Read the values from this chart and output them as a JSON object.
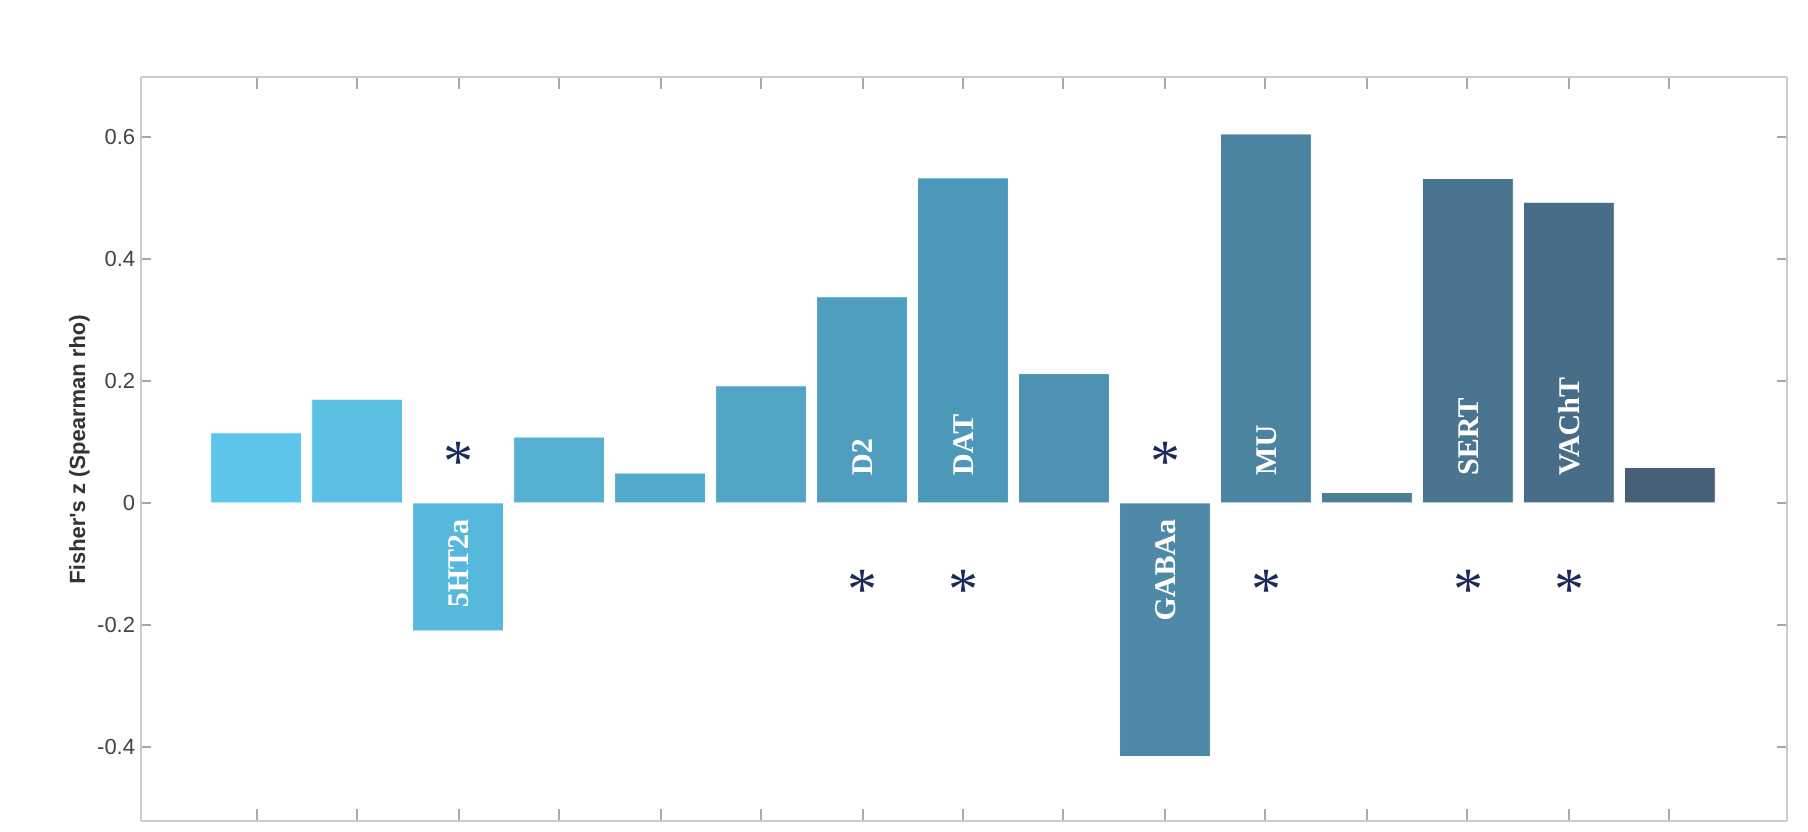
{
  "chart_data": {
    "type": "bar",
    "ylabel": "Fisher's z (Spearman rho)",
    "categories": [
      null,
      null,
      "5HT2a",
      null,
      null,
      null,
      "D2",
      "DAT",
      null,
      "GABAa",
      "MU",
      null,
      "SERT",
      "VAChT",
      null
    ],
    "values": [
      0.115,
      0.17,
      -0.21,
      0.108,
      0.049,
      0.192,
      0.338,
      0.533,
      0.212,
      -0.416,
      0.605,
      0.017,
      0.532,
      0.493,
      0.058
    ],
    "colors": [
      "#5bc5ea",
      "#5ac0e4",
      "#57b8de",
      "#55b0d2",
      "#52aaca",
      "#52a5c5",
      "#4f9dbf",
      "#4c98b9",
      "#4d92b0",
      "#4e8aa8",
      "#4b84a0",
      "#4a7e99",
      "#497591",
      "#486d89",
      "#475f79"
    ],
    "ylim": [
      -0.52,
      0.7
    ],
    "yticks": [
      -0.4,
      -0.2,
      {
        "value": 0,
        "label": "0"
      },
      0.2,
      0.4,
      0.6
    ],
    "tick_labels": "y",
    "grid": false,
    "value_labels": [
      null,
      null,
      "*",
      null,
      null,
      null,
      "*",
      "*",
      null,
      "*",
      "*",
      null,
      "*",
      "*",
      null
    ]
  }
}
